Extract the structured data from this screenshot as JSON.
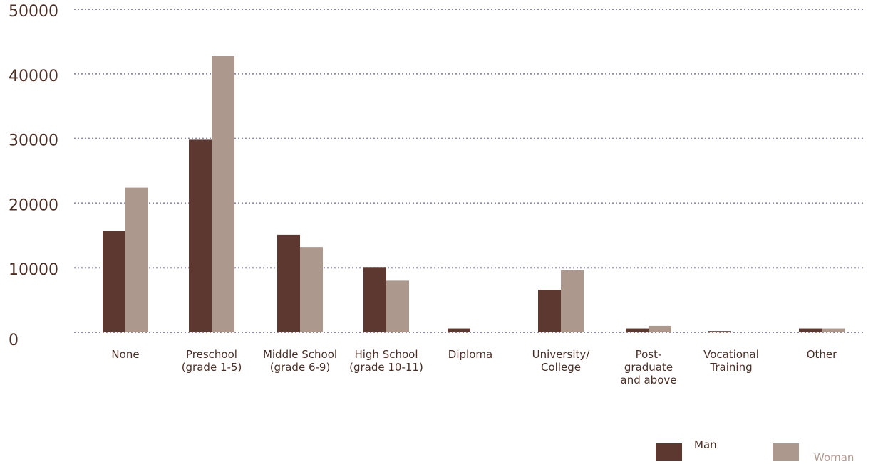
{
  "chart_data": {
    "type": "bar",
    "categories": [
      "None",
      "Preschool\n(grade 1-5)",
      "Middle School\n(grade 6-9)",
      "High School\n(grade 10-11)",
      "Diploma",
      "University/\nCollege",
      "Post-\ngraduate\nand above",
      "Vocational\nTraining",
      "Other"
    ],
    "series": [
      {
        "name": "Man",
        "color": "#5c3830",
        "values": [
          15700,
          29800,
          15100,
          10100,
          600,
          6600,
          600,
          200,
          600
        ]
      },
      {
        "name": "Woman",
        "color": "#ad988e",
        "values": [
          22400,
          42800,
          13200,
          8000,
          0,
          9600,
          1000,
          0,
          600
        ]
      }
    ],
    "yticks": [
      0,
      10000,
      20000,
      30000,
      40000,
      50000
    ],
    "ylim": [
      0,
      50000
    ],
    "grid": true,
    "legend_position": "bottom-right"
  }
}
